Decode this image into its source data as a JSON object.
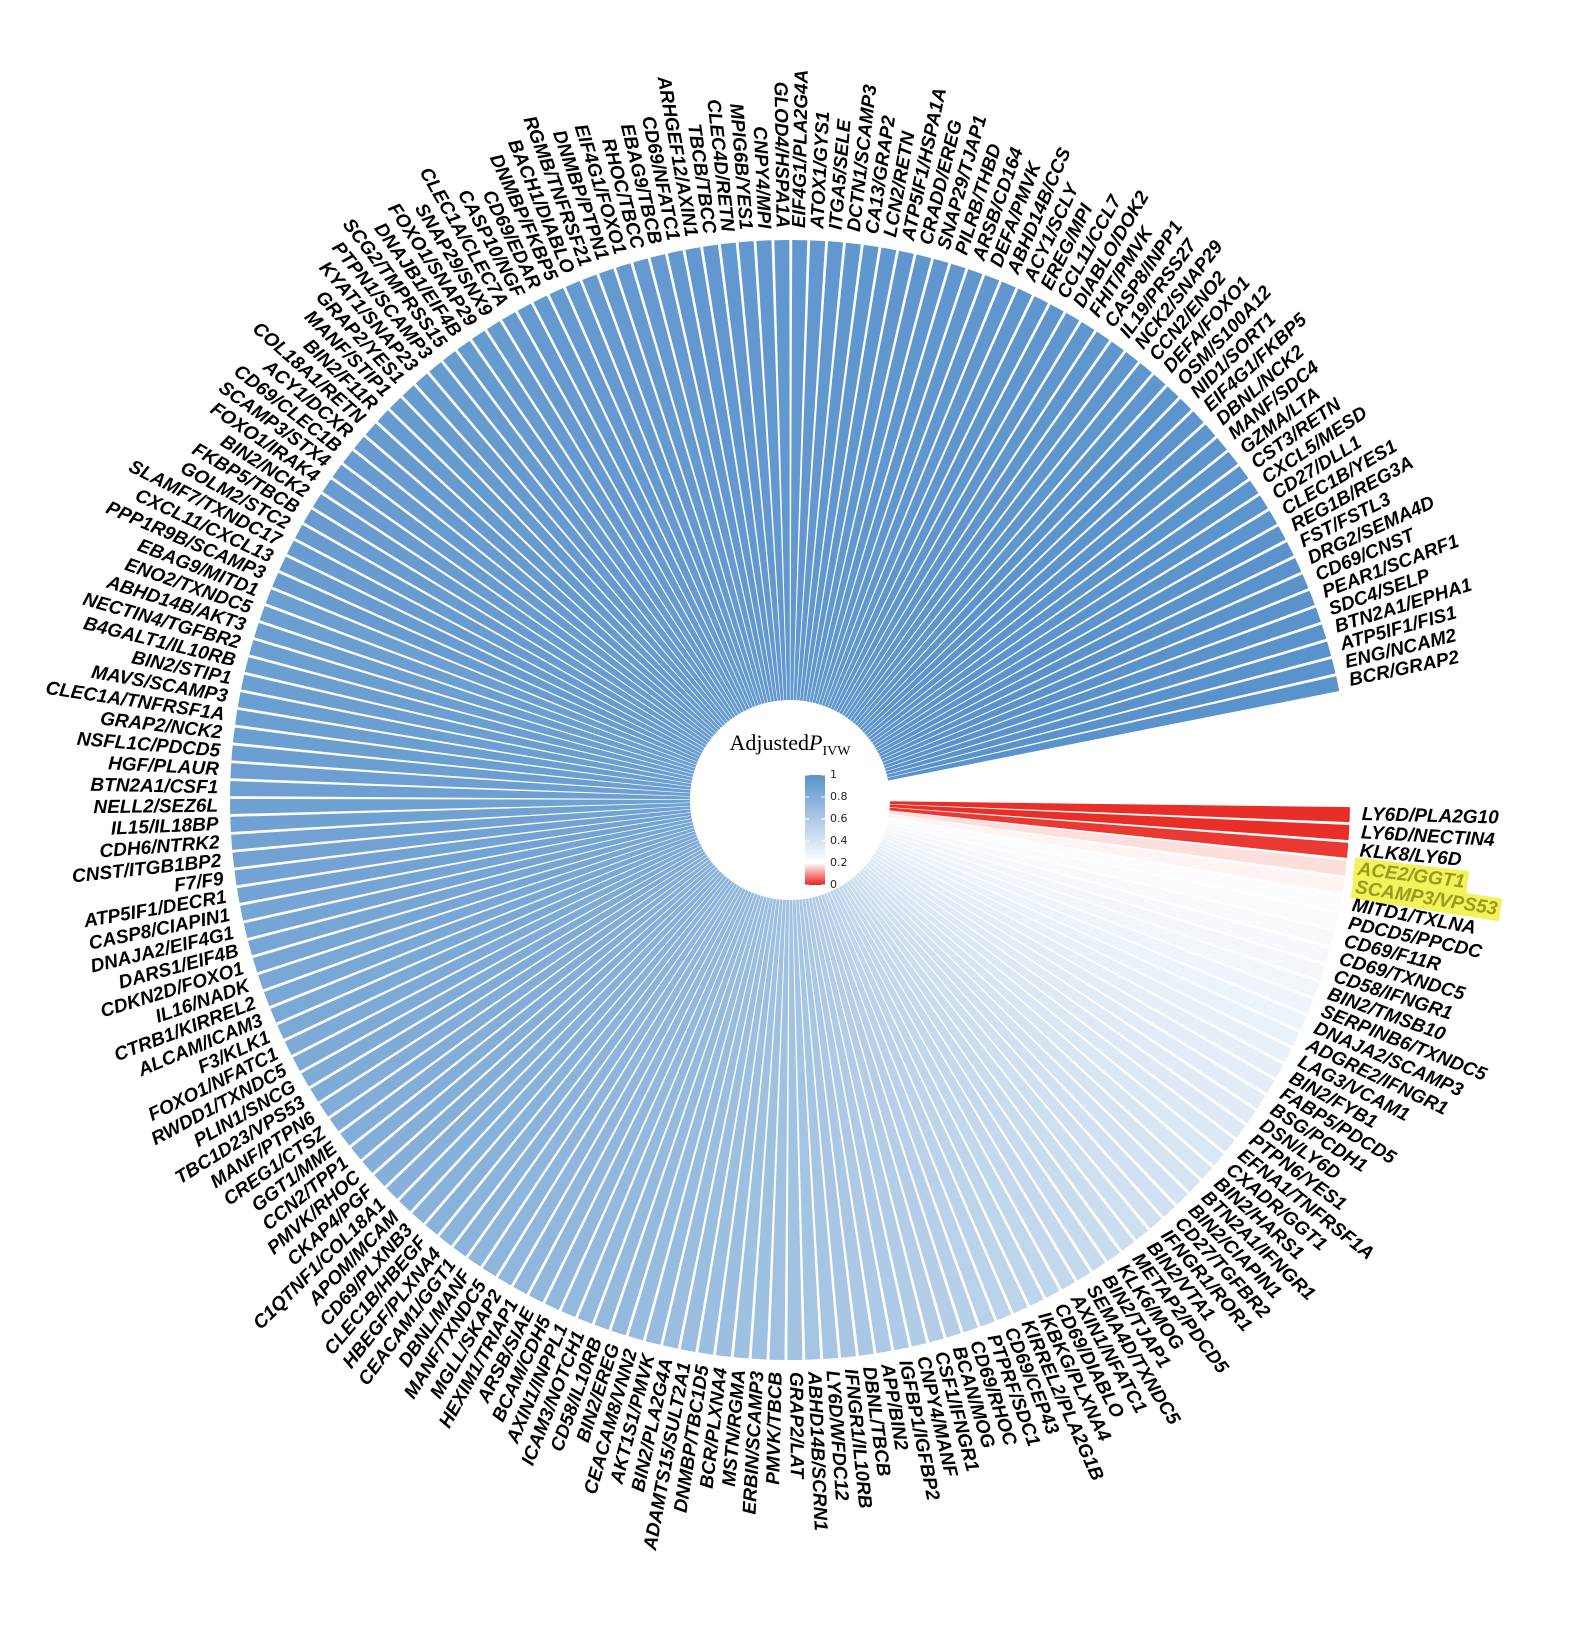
{
  "chart_data": {
    "type": "radial-bar",
    "legend_title": {
      "main": "Adjusted",
      "var": "P",
      "sub": "IVW"
    },
    "legend_ticks": [
      0,
      0.2,
      0.4,
      0.6,
      0.8,
      1
    ],
    "color_scale": [
      {
        "value": 0,
        "color": "#e8221c"
      },
      {
        "value": 0.2,
        "color": "#ffffff"
      },
      {
        "value": 1,
        "color": "#5a93cc"
      }
    ],
    "highlight_indices": [
      3,
      4
    ],
    "categories": [
      "LY6D/PLA2G10",
      "LY6D/NECTIN4",
      "KLK8/LY6D",
      "ACE2/GGT1",
      "SCAMP3/VPS53",
      "MITD1/TXLNA",
      "PDCD5/PPCDC",
      "CD69/F11R",
      "CD69/TXNDC5",
      "CD58/IFNGR1",
      "BIN2/TMSB10",
      "SERPINB6/TXNDC5",
      "DNAJA2/SCAMP3",
      "ADGRE2/IFNGR1",
      "LAG3/VCAM1",
      "BIN2/FYB1",
      "FABP5/PDCD5",
      "BSG/PCDH1",
      "DSN/LY6D",
      "PTPN6/YES1",
      "EFNA1/TNFRSF1A",
      "CXADR/GGT1",
      "BIN2/HARS1",
      "BTN2A1/IFNGR1",
      "BIN2/CIAPIN1",
      "CD27/TGFBR2",
      "IFNGR1/ROR1",
      "BIN2/VTA1",
      "METAP2/PDCD5",
      "KLK6/MOG",
      "BIN2/TJAP1",
      "SEMA4D/TXNDC5",
      "AXIN1/NFATC1",
      "CD69/DIABLO",
      "IKBKG/PLXNA4",
      "KIRREL2/PLA2G1B",
      "CD69/CEP43",
      "PTPRF/SDC1",
      "CD69/RHOC",
      "BCAN/MOG",
      "CSF1/IFNGR1",
      "CNPY4/MANF",
      "IGFBP1/IGFBP2",
      "APP/BIN2",
      "DBNL/TBCB",
      "IFNGR1/IL10RB",
      "LY6D/WFDC12",
      "ABHD14B/SCRN1",
      "GRAP2/LAT",
      "PMVK/TBCB",
      "ERBIN/SCAMP3",
      "MSTN/RGMA",
      "BCR/PLXNA4",
      "DNMBP/TBC1D5",
      "ADAMTS15/SULT2A1",
      "BIN2/PLA2G4A",
      "AKT1S1/PMVK",
      "CEACAM8/VNN2",
      "BIN2/EREG",
      "CD58/IL10RB",
      "ICAM3/NOTCH1",
      "AXIN1/INPPL1",
      "BCAM/CDH5",
      "ARSB/SIAE",
      "HEXIM1/TRIAP1",
      "MGLL/SKAP2",
      "MANF/TXNDC5",
      "DBNL/MANF",
      "CEACAM1/GGT1",
      "HBEGF/PLXNA4",
      "CLEC1B/HBEGF",
      "CD69/PLXNB3",
      "APOM/MCAM",
      "C1QTNF1/COL18A1",
      "CKAP4/PGF",
      "PMVK/RHOC",
      "CCN2/TPP1",
      "GGT1/MME",
      "CREG1/CTSZ",
      "MANF/PTPN6",
      "TBC1D23/VPS53",
      "PLIN1/SNCG",
      "RWDD1/TXNDC5",
      "FOXO1/NFATC1",
      "F3/KLK1",
      "ALCAM/ICAM3",
      "CTRB1/KIRREL2",
      "IL16/NADK",
      "CDKN2D/FOXO1",
      "DARS1/EIF4B",
      "DNAJA2/EIF4G1",
      "CASP8/CIAPIN1",
      "ATP5IF1/DECR1",
      "F7/F9",
      "CNST/ITGB1BP2",
      "CDH6/NTRK2",
      "IL15/IL18BP",
      "NELL2/SEZ6L",
      "BTN2A1/CSF1",
      "HGF/PLAUR",
      "NSFL1C/PDCD5",
      "GRAP2/NCK2",
      "CLEC1A/TNFRSF1A",
      "MAVS/SCAMP3",
      "BIN2/STIP1",
      "B4GALT1/IL10RB",
      "NECTIN4/TGFBR2",
      "ABHD14B/AKT3",
      "ENO2/TXNDC5",
      "EBAG9/MITD1",
      "PPP1R9B/SCAMP3",
      "CXCL11/CXCL13",
      "SLAMF7/TXNDC17",
      "GOLM2/STC2",
      "FKBP5/TBCB",
      "BIN2/NCK2",
      "FOXO1/IRAK4",
      "SCAMP3/STX4",
      "CD69/CLEC1B",
      "ACY1/DCXR",
      "COL18A1/RETN",
      "BIN2/F11R",
      "MANF/STIP1",
      "GRAP2/YES1",
      "KYAT1/SNAP23",
      "PTPN1/SCAMP3",
      "SCG2/TMPRSS15",
      "DNAJB1/EIF4B",
      "FOXO1/SNAP29",
      "SNAP29/SNX9",
      "CLEC1A/CLEC7A",
      "CASP10/NGF",
      "CD69/EDAR",
      "DNMBP/FKBP5",
      "BACH1/DIABLO",
      "RGMB/TNFRSF21",
      "DNMBP/PTPN1",
      "EIF4G1/FOXO1",
      "RHOC/TBCC",
      "EBAG9/TBCB",
      "CD69/NFATC1",
      "ARHGEF12/AXIN1",
      "TBCB/TBCC",
      "CLEC4D/RETN",
      "MPIG6B/YES1",
      "CNPY4/MPI",
      "GLOD4/HSPA1A",
      "EIF4G1/PLA2G4A",
      "ATOX1/GYS1",
      "ITGA5/SELE",
      "DCTN1/SCAMP3",
      "CA13/GRAP2",
      "LCN2/RETN",
      "ATP5IF1/HSPA1A",
      "CRADD/EREG",
      "SNAP29/TJAP1",
      "PILRB/THBD",
      "ARSB/CD164",
      "DEFA/PMVK",
      "ABHD14B/CCS",
      "ACY1/SCLY",
      "EREG/MPI",
      "CCL11/CCL7",
      "DIABLO/DOK2",
      "FHIT/PMVK",
      "CASP8/INPP1",
      "IL19/PRSS27",
      "NCK2/SNAP29",
      "CCN2/ENO2",
      "DEFA/FOXO1",
      "OSM/S100A12",
      "NID1/SORT1",
      "EIF4G1/FKBP5",
      "DBNL/NCK2",
      "MANF/SDC4",
      "GZMA/LTA",
      "CST3/RETN",
      "CXCL5/MESD",
      "CD27/DLL1",
      "CLEC1B/YES1",
      "REG1B/REG3A",
      "FST/FSTL3",
      "DRG2/SEMA4D",
      "CD69/CNST",
      "PEAR1/SCARF1",
      "SDC4/SELP",
      "BTN2A1/EPHA1",
      "ATP5IF1/FIS1",
      "ENG/NCAM2",
      "BCR/GRAP2"
    ],
    "values": [
      0.01,
      0.01,
      0.02,
      0.17,
      0.19,
      0.22,
      0.23,
      0.24,
      0.25,
      0.26,
      0.27,
      0.28,
      0.29,
      0.3,
      0.31,
      0.32,
      0.33,
      0.34,
      0.35,
      0.36,
      0.37,
      0.38,
      0.39,
      0.4,
      0.41,
      0.42,
      0.43,
      0.44,
      0.45,
      0.46,
      0.47,
      0.48,
      0.49,
      0.5,
      0.51,
      0.52,
      0.53,
      0.54,
      0.55,
      0.56,
      0.57,
      0.58,
      0.59,
      0.6,
      0.61,
      0.62,
      0.63,
      0.64,
      0.65,
      0.66,
      0.67,
      0.67,
      0.68,
      0.68,
      0.69,
      0.69,
      0.7,
      0.7,
      0.71,
      0.71,
      0.72,
      0.72,
      0.73,
      0.73,
      0.74,
      0.74,
      0.75,
      0.75,
      0.76,
      0.76,
      0.77,
      0.77,
      0.78,
      0.78,
      0.79,
      0.79,
      0.8,
      0.8,
      0.81,
      0.81,
      0.82,
      0.82,
      0.83,
      0.83,
      0.84,
      0.84,
      0.85,
      0.85,
      0.86,
      0.86,
      0.87,
      0.87,
      0.88,
      0.88,
      0.89,
      0.89,
      0.9,
      0.9,
      0.91,
      0.91,
      0.92,
      0.92,
      0.92,
      0.92,
      0.92,
      0.92,
      0.92,
      0.92,
      0.92,
      0.92,
      0.93,
      0.93,
      0.93,
      0.93,
      0.93,
      0.93,
      0.93,
      0.93,
      0.93,
      0.93,
      0.94,
      0.94,
      0.94,
      0.94,
      0.94,
      0.94,
      0.94,
      0.94,
      0.94,
      0.94,
      0.95,
      0.95,
      0.95,
      0.95,
      0.95,
      0.95,
      0.95,
      0.95,
      0.95,
      0.95,
      0.96,
      0.96,
      0.96,
      0.96,
      0.96,
      0.96,
      0.96,
      0.96,
      0.96,
      0.96,
      0.97,
      0.97,
      0.97,
      0.97,
      0.97,
      0.97,
      0.97,
      0.97,
      0.97,
      0.97,
      0.98,
      0.98,
      0.98,
      0.98,
      0.98,
      0.98,
      0.98,
      0.98,
      0.98,
      0.98,
      0.99,
      0.99,
      0.99,
      0.99,
      0.99,
      0.99,
      0.99,
      0.99,
      0.99,
      0.99,
      1,
      1,
      1,
      1,
      1,
      1,
      1,
      1,
      1,
      1
    ]
  }
}
